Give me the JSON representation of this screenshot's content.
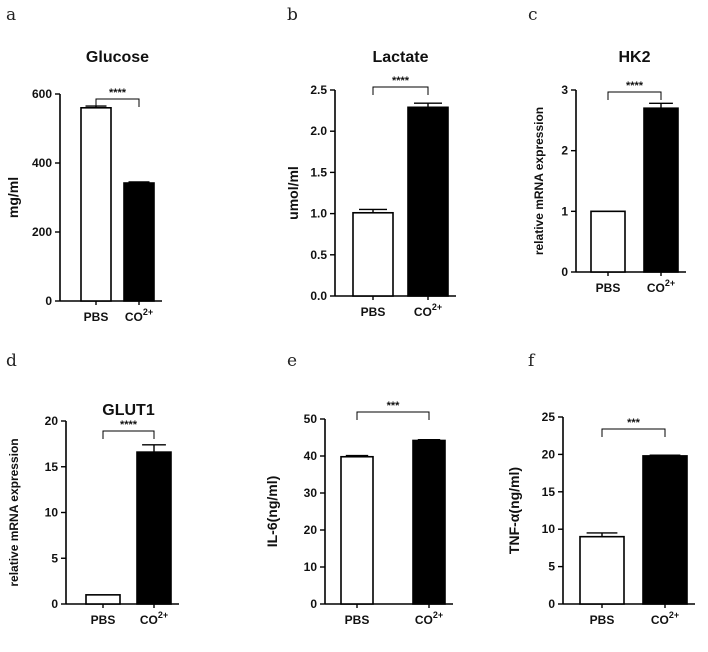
{
  "chart_data": [
    {
      "type": "bar",
      "panel": "a",
      "title": "Glucose",
      "ylabel": "mg/ml",
      "categories": [
        "PBS",
        "CO"
      ],
      "category_superscripts": [
        "",
        "2+"
      ],
      "values": [
        560,
        342
      ],
      "errors": [
        5,
        3
      ],
      "bar_fills": [
        "#ffffff",
        "#000000"
      ],
      "ylim": [
        0,
        600
      ],
      "yticks": [
        0,
        200,
        400,
        600
      ],
      "significance": "****"
    },
    {
      "type": "bar",
      "panel": "b",
      "title": "Lactate",
      "ylabel": "umol/ml",
      "categories": [
        "PBS",
        "CO"
      ],
      "category_superscripts": [
        "",
        "2+"
      ],
      "values": [
        1.01,
        2.29
      ],
      "errors": [
        0.04,
        0.05
      ],
      "bar_fills": [
        "#ffffff",
        "#000000"
      ],
      "ylim": [
        0,
        2.5
      ],
      "yticks": [
        0.0,
        0.5,
        1.0,
        1.5,
        2.0,
        2.5
      ],
      "ytick_labels": [
        "0.0",
        "0.5",
        "1.0",
        "1.5",
        "2.0",
        "2.5"
      ],
      "significance": "****"
    },
    {
      "type": "bar",
      "panel": "c",
      "title": "HK2",
      "ylabel": "relative mRNA expression",
      "categories": [
        "PBS",
        "CO"
      ],
      "category_superscripts": [
        "",
        "2+"
      ],
      "values": [
        1.0,
        2.7
      ],
      "errors": [
        0,
        0.08
      ],
      "bar_fills": [
        "#ffffff",
        "#000000"
      ],
      "ylim": [
        0,
        3
      ],
      "yticks": [
        0,
        1,
        2,
        3
      ],
      "significance": "****"
    },
    {
      "type": "bar",
      "panel": "d",
      "title": "GLUT1",
      "ylabel": "relative mRNA expression",
      "categories": [
        "PBS",
        "CO"
      ],
      "category_superscripts": [
        "",
        "2+"
      ],
      "values": [
        1.0,
        16.6
      ],
      "errors": [
        0,
        0.8
      ],
      "bar_fills": [
        "#ffffff",
        "#000000"
      ],
      "ylim": [
        0,
        20
      ],
      "yticks": [
        0,
        5,
        10,
        15,
        20
      ],
      "significance": "****"
    },
    {
      "type": "bar",
      "panel": "e",
      "title": "",
      "ylabel": "IL-6(ng/ml)",
      "categories": [
        "PBS",
        "CO"
      ],
      "category_superscripts": [
        "",
        "2+"
      ],
      "values": [
        39.8,
        44.2
      ],
      "errors": [
        0.3,
        0.2
      ],
      "bar_fills": [
        "#ffffff",
        "#000000"
      ],
      "ylim": [
        0,
        50
      ],
      "yticks": [
        0,
        10,
        20,
        30,
        40,
        50
      ],
      "significance": "***"
    },
    {
      "type": "bar",
      "panel": "f",
      "title": "",
      "ylabel": "TNF-α(ng/ml)",
      "categories": [
        "PBS",
        "CO"
      ],
      "category_superscripts": [
        "",
        "2+"
      ],
      "values": [
        9.0,
        19.8
      ],
      "errors": [
        0.5,
        0.1
      ],
      "bar_fills": [
        "#ffffff",
        "#000000"
      ],
      "ylim": [
        0,
        25
      ],
      "yticks": [
        0,
        5,
        10,
        15,
        20,
        25
      ],
      "significance": "***"
    }
  ]
}
